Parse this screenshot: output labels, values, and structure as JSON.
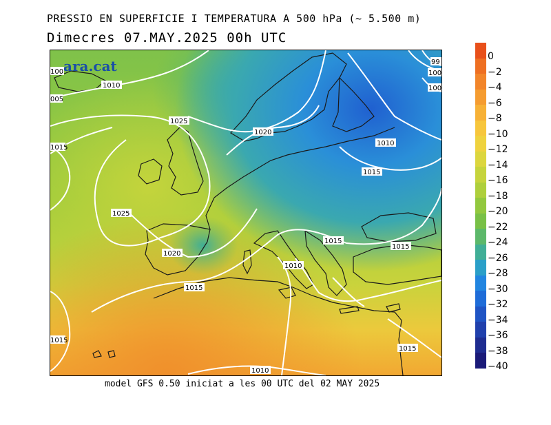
{
  "header": {
    "title": "PRESSIO EN SUPERFICIE I TEMPERATURA A 500 hPa (~ 5.500 m)",
    "date_line": "Dimecres  07.MAY.2025 00h UTC"
  },
  "brand": "ara.cat",
  "footer": "model GFS 0.50 iniciat a les 00 UTC del 02 MAY 2025",
  "legend": {
    "labels": [
      "0",
      "−2",
      "−4",
      "−6",
      "−8",
      "−10",
      "−12",
      "−14",
      "−16",
      "−18",
      "−20",
      "−22",
      "−24",
      "−26",
      "−28",
      "−30",
      "−32",
      "−34",
      "−36",
      "−38",
      "−40"
    ],
    "colors": [
      "#e8501a",
      "#ee6f22",
      "#f2852a",
      "#f59c30",
      "#f7b136",
      "#f7c63c",
      "#efd23e",
      "#dcd63e",
      "#c6d43c",
      "#aecf3c",
      "#92c83e",
      "#78c046",
      "#5cb86a",
      "#40ae96",
      "#2a9fc8",
      "#2185e0",
      "#1e6cd8",
      "#1f54c4",
      "#2040ac",
      "#1e2c90",
      "#1a1a78"
    ]
  },
  "isobars": [
    {
      "text": "1010",
      "color": "#000"
    },
    {
      "text": "1025",
      "color": "#000"
    },
    {
      "text": "1020",
      "color": "#000"
    },
    {
      "text": "1015",
      "color": "#000"
    },
    {
      "text": "1025",
      "color": "#000"
    },
    {
      "text": "1020",
      "color": "#000"
    },
    {
      "text": "1015",
      "color": "#000"
    },
    {
      "text": "1010",
      "color": "#000"
    },
    {
      "text": "1015",
      "color": "#000"
    },
    {
      "text": "1010",
      "color": "#000"
    },
    {
      "text": "1015",
      "color": "#000"
    },
    {
      "text": "1015",
      "color": "#000"
    },
    {
      "text": "1010",
      "color": "#000"
    },
    {
      "text": "1015",
      "color": "#000"
    },
    {
      "text": "1015",
      "color": "#000"
    },
    {
      "text": "1015",
      "color": "#000"
    },
    {
      "text": "100",
      "color": "#000"
    },
    {
      "text": "99",
      "color": "#000"
    },
    {
      "text": "100",
      "color": "#000"
    },
    {
      "text": "100",
      "color": "#000"
    },
    {
      "text": "005",
      "color": "#000"
    }
  ]
}
